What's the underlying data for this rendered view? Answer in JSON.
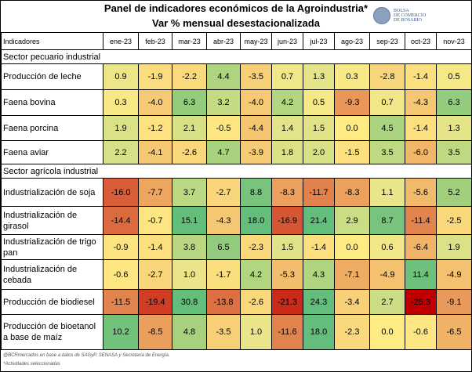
{
  "title": "Panel de indicadores económicos de la Agroindustria*",
  "subtitle": "Var % mensual desestacionalizada",
  "logo_text": [
    "BOLSA",
    "DE COMERCIO",
    "DE ROSARIO"
  ],
  "footer": [
    "@BCRmercados en base a datos de SAGyP, SENASA y Secretaría de Energía.",
    "*Actividades seleccionadas"
  ],
  "colors": {
    "min": "#C00000",
    "mid": "#FFEB84",
    "max": "#63BE7B"
  },
  "chart_data": {
    "type": "heatmap",
    "row_header": "Indicadores",
    "columns": [
      "ene-23",
      "feb-23",
      "mar-23",
      "abr-23",
      "may-23",
      "jun-23",
      "jul-23",
      "ago-23",
      "sep-23",
      "oct-23",
      "nov-23"
    ],
    "sections": [
      {
        "name": "Sector pecuario industrial",
        "rows": [
          {
            "label": "Producción de leche",
            "values": [
              0.9,
              -1.9,
              -2.2,
              4.4,
              -3.5,
              0.7,
              1.3,
              0.3,
              -2.8,
              -1.4,
              0.5
            ]
          },
          {
            "label": "Faena bovina",
            "values": [
              0.3,
              -4.0,
              6.3,
              3.2,
              -4.0,
              4.2,
              0.5,
              -9.3,
              0.7,
              -4.3,
              6.3
            ]
          },
          {
            "label": "Faena porcina",
            "values": [
              1.9,
              -1.2,
              2.1,
              -0.5,
              -4.4,
              1.4,
              1.5,
              0.0,
              4.5,
              -1.4,
              1.3
            ]
          },
          {
            "label": "Faena aviar",
            "values": [
              2.2,
              -4.1,
              -2.6,
              4.7,
              -3.9,
              1.8,
              2.0,
              -1.5,
              3.5,
              -6.0,
              3.5
            ]
          }
        ]
      },
      {
        "name": "Sector agrícola industrial",
        "rows": [
          {
            "label": "Industrialización de soja",
            "values": [
              -16.0,
              -7.7,
              3.7,
              -2.7,
              8.8,
              -8.3,
              -11.7,
              -8.3,
              1.1,
              -5.6,
              5.2
            ]
          },
          {
            "label": "Industrialización de girasol",
            "values": [
              -14.4,
              -0.7,
              15.1,
              -4.3,
              18.0,
              -16.9,
              21.4,
              2.9,
              8.7,
              -11.4,
              -2.5
            ]
          },
          {
            "label": "Industrialización de trigo pan",
            "values": [
              -0.9,
              -1.4,
              3.8,
              6.5,
              -2.3,
              1.5,
              -1.4,
              0.0,
              0.6,
              -6.4,
              1.9
            ]
          },
          {
            "label": "Industrialización de cebada",
            "values": [
              -0.6,
              -2.7,
              1.0,
              -1.7,
              4.2,
              -5.3,
              4.3,
              -7.1,
              -4.9,
              11.4,
              -4.9
            ]
          },
          {
            "label": "Producción de biodiesel",
            "values": [
              -11.5,
              -19.4,
              30.8,
              -13.8,
              -2.6,
              -21.3,
              24.3,
              -3.4,
              2.7,
              -25.3,
              -9.1
            ]
          },
          {
            "label": "Producción de bioetanol a base de maíz",
            "values": [
              10.2,
              -8.5,
              4.8,
              -3.5,
              1.0,
              -11.6,
              18.0,
              -2.3,
              0.0,
              -0.6,
              -6.5
            ]
          }
        ]
      }
    ]
  }
}
